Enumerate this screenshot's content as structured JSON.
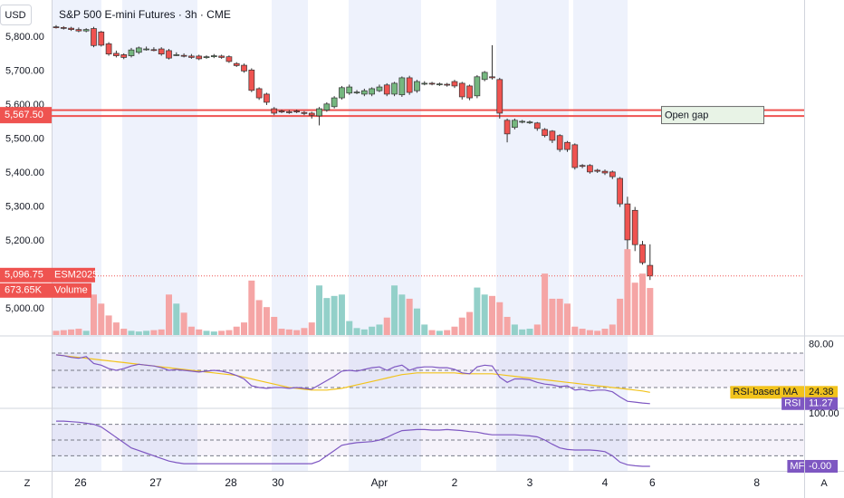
{
  "header": {
    "currency": "USD",
    "title": "S&P 500 E-mini Futures · 3h · CME"
  },
  "chart_data": [
    {
      "type": "candlestick",
      "name": "ESM2025",
      "up_color": "#75b77f",
      "down_color": "#ef5350",
      "open": [
        5830,
        5828,
        5826,
        5822,
        5818,
        5825,
        5815,
        5780,
        5752,
        5748,
        5745,
        5755,
        5765,
        5763,
        5765,
        5760,
        5748,
        5746,
        5744,
        5744,
        5740,
        5742,
        5744,
        5742,
        5722,
        5717,
        5703,
        5648,
        5632,
        5589,
        5582,
        5580,
        5582,
        5578,
        5576,
        5568,
        5585,
        5595,
        5621,
        5635,
        5638,
        5632,
        5632,
        5642,
        5659,
        5632,
        5630,
        5680,
        5642,
        5664,
        5664,
        5662,
        5661,
        5669,
        5664,
        5656,
        5627,
        5675,
        5683,
        5675,
        5555,
        5534,
        5552,
        5550,
        5547,
        5528,
        5523,
        5510,
        5490,
        5483,
        5422,
        5422,
        5408,
        5405,
        5403,
        5384,
        5309,
        5290,
        5189,
        5128
      ],
      "high": [
        5835,
        5832,
        5830,
        5828,
        5826,
        5830,
        5818,
        5785,
        5760,
        5752,
        5768,
        5772,
        5772,
        5770,
        5770,
        5765,
        5755,
        5752,
        5750,
        5748,
        5746,
        5750,
        5748,
        5746,
        5726,
        5722,
        5708,
        5652,
        5636,
        5594,
        5586,
        5585,
        5586,
        5582,
        5580,
        5594,
        5608,
        5626,
        5656,
        5660,
        5644,
        5648,
        5652,
        5660,
        5664,
        5668,
        5684,
        5686,
        5674,
        5670,
        5668,
        5666,
        5665,
        5674,
        5668,
        5660,
        5688,
        5700,
        5776,
        5680,
        5560,
        5560,
        5556,
        5554,
        5550,
        5532,
        5526,
        5514,
        5494,
        5487,
        5426,
        5426,
        5412,
        5410,
        5407,
        5388,
        5330,
        5300,
        5200,
        5190
      ],
      "low": [
        5825,
        5822,
        5818,
        5814,
        5814,
        5770,
        5772,
        5745,
        5740,
        5735,
        5740,
        5750,
        5760,
        5758,
        5745,
        5734,
        5744,
        5740,
        5736,
        5732,
        5736,
        5738,
        5736,
        5724,
        5712,
        5695,
        5638,
        5615,
        5600,
        5570,
        5576,
        5574,
        5576,
        5570,
        5560,
        5540,
        5580,
        5590,
        5616,
        5630,
        5632,
        5626,
        5626,
        5638,
        5626,
        5626,
        5624,
        5630,
        5636,
        5658,
        5658,
        5656,
        5654,
        5650,
        5616,
        5614,
        5620,
        5670,
        5675,
        5560,
        5490,
        5528,
        5546,
        5544,
        5524,
        5505,
        5488,
        5462,
        5462,
        5410,
        5414,
        5398,
        5400,
        5394,
        5382,
        5300,
        5150,
        5170,
        5130,
        5085
      ],
      "close": [
        5828,
        5826,
        5822,
        5818,
        5822,
        5775,
        5776,
        5750,
        5745,
        5740,
        5762,
        5768,
        5765,
        5762,
        5750,
        5738,
        5748,
        5745,
        5740,
        5736,
        5742,
        5745,
        5740,
        5728,
        5716,
        5700,
        5643,
        5621,
        5608,
        5576,
        5580,
        5578,
        5581,
        5575,
        5570,
        5589,
        5603,
        5621,
        5651,
        5653,
        5638,
        5642,
        5648,
        5653,
        5632,
        5664,
        5680,
        5637,
        5669,
        5664,
        5663,
        5662,
        5660,
        5656,
        5624,
        5621,
        5683,
        5696,
        5680,
        5576,
        5515,
        5555,
        5552,
        5550,
        5531,
        5510,
        5496,
        5469,
        5469,
        5416,
        5420,
        5403,
        5405,
        5400,
        5389,
        5309,
        5203,
        5189,
        5136,
        5096.75
      ],
      "last_label": "5,096.75",
      "ylim": [
        4923,
        5909
      ],
      "yticks": [
        {
          "value": 5000,
          "label": "5,000.00"
        },
        {
          "value": 5200,
          "label": "5,200.00"
        },
        {
          "value": 5300,
          "label": "5,300.00"
        },
        {
          "value": 5400,
          "label": "5,400.00"
        },
        {
          "value": 5500,
          "label": "5,500.00"
        },
        {
          "value": 5600,
          "label": "5,600.00"
        },
        {
          "value": 5700,
          "label": "5,700.00"
        },
        {
          "value": 5800,
          "label": "5,800.00"
        }
      ],
      "xlim": [
        -0.6,
        99.5
      ],
      "xticks": [
        {
          "value": 3.25,
          "label": "26"
        },
        {
          "value": 13.25,
          "label": "27"
        },
        {
          "value": 23.25,
          "label": "28"
        },
        {
          "value": 29.5,
          "label": "30"
        },
        {
          "value": 43,
          "label": "Apr"
        },
        {
          "value": 53,
          "label": "2"
        },
        {
          "value": 63,
          "label": "3"
        },
        {
          "value": 73,
          "label": "4"
        },
        {
          "value": 79.3,
          "label": "6"
        },
        {
          "value": 93.2,
          "label": "8"
        }
      ],
      "gap": {
        "values": [
          5567.5,
          5585
        ],
        "label": "5,567.50",
        "text": "Open gap",
        "color": "#ef5350"
      }
    },
    {
      "type": "volume",
      "name": "Volume",
      "up_color": "#93d0c9",
      "down_color": "#f5a5a5",
      "values": [
        60,
        70,
        80,
        90,
        60,
        580,
        450,
        280,
        180,
        90,
        60,
        50,
        60,
        70,
        80,
        580,
        450,
        320,
        120,
        80,
        60,
        50,
        60,
        70,
        120,
        180,
        780,
        500,
        400,
        260,
        90,
        80,
        70,
        100,
        180,
        710,
        530,
        560,
        580,
        200,
        100,
        80,
        120,
        150,
        250,
        710,
        580,
        520,
        380,
        150,
        70,
        60,
        70,
        120,
        250,
        330,
        680,
        580,
        560,
        470,
        260,
        150,
        80,
        90,
        150,
        880,
        520,
        520,
        450,
        120,
        90,
        70,
        60,
        90,
        150,
        520,
        1230,
        750,
        880,
        673.65
      ],
      "last_label": "673.65K",
      "ylim": [
        0,
        4800
      ]
    },
    {
      "type": "line",
      "series": [
        {
          "name": "RSI-based MA",
          "color": "#f2c31c",
          "values": [
            68,
            67,
            66,
            65,
            64,
            63,
            62,
            61,
            60,
            59,
            58,
            57,
            56,
            55,
            54,
            53,
            52,
            51,
            50,
            49,
            48,
            47,
            46,
            45,
            44,
            42,
            40,
            38,
            36,
            34,
            32,
            30,
            29,
            28,
            27,
            27,
            27,
            28,
            29,
            31,
            33,
            35,
            37,
            39,
            41,
            43,
            45,
            46,
            47,
            47,
            47,
            47,
            47,
            47,
            46,
            46,
            46,
            46,
            46,
            45,
            44,
            43,
            42,
            41,
            40,
            39,
            38,
            37,
            36,
            35,
            34,
            33,
            32,
            31,
            30,
            29,
            28,
            27,
            26,
            24.38
          ]
        },
        {
          "name": "RSI",
          "color": "#7e57c2",
          "values": [
            68,
            67,
            65,
            64,
            66,
            58,
            56,
            52,
            50,
            52,
            55,
            57,
            56,
            55,
            53,
            50,
            51,
            50,
            49,
            48,
            49,
            50,
            49,
            47,
            44,
            40,
            32,
            30,
            29,
            30,
            30,
            29,
            30,
            29,
            28,
            33,
            38,
            43,
            49,
            50,
            49,
            51,
            53,
            54,
            50,
            54,
            56,
            50,
            53,
            54,
            54,
            53,
            53,
            51,
            47,
            46,
            54,
            56,
            55,
            42,
            36,
            40,
            40,
            39,
            36,
            34,
            33,
            31,
            32,
            27,
            28,
            26,
            27,
            27,
            25,
            19,
            14,
            13,
            12,
            11.27
          ]
        }
      ],
      "ylim": [
        6.8,
        88.9
      ],
      "yticks": [
        {
          "value": 80,
          "label": "80.00"
        }
      ],
      "levels": [
        70,
        50,
        30
      ]
    },
    {
      "type": "line",
      "series": [
        {
          "name": "MF",
          "color": "#7e57c2",
          "last_label": "-0.00",
          "values": [
            86,
            86,
            85,
            84,
            82,
            80,
            75,
            65,
            55,
            45,
            35,
            30,
            25,
            20,
            15,
            10,
            7,
            5,
            5,
            5,
            5,
            5,
            5,
            5,
            5,
            5,
            5,
            5,
            5,
            5,
            5,
            5,
            5,
            5,
            5,
            10,
            20,
            30,
            40,
            43,
            45,
            46,
            47,
            50,
            55,
            62,
            68,
            69,
            70,
            70,
            69,
            69,
            70,
            69,
            68,
            66,
            65,
            62,
            60,
            60,
            60,
            60,
            59,
            58,
            56,
            50,
            42,
            35,
            32,
            31,
            31,
            31,
            30,
            28,
            20,
            8,
            3,
            1,
            0,
            0
          ]
        }
      ],
      "ylim": [
        -8.6,
        108.6
      ],
      "yticks": [
        {
          "value": 100,
          "label": "100.00"
        }
      ],
      "levels": [
        80,
        50,
        20
      ]
    }
  ],
  "footer": {
    "left": "Z",
    "right": "A"
  }
}
